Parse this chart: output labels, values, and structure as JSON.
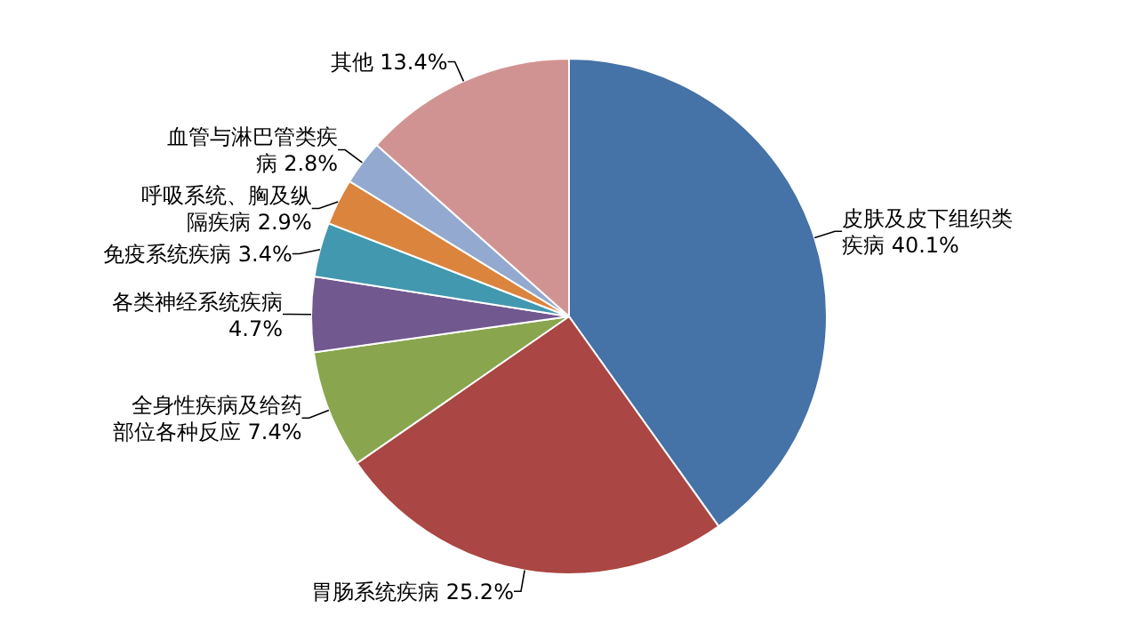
{
  "chart_data": {
    "type": "pie",
    "categories": [
      "皮肤及皮下组织类疾病",
      "胃肠系统疾病",
      "全身性疾病及给药部位各种反应",
      "各类神经系统疾病",
      "免疫系统疾病",
      "呼吸系统、胸及纵隔疾病",
      "血管与淋巴管类疾病",
      "其他"
    ],
    "values": [
      40.1,
      25.2,
      7.4,
      4.7,
      3.4,
      2.9,
      2.8,
      13.4
    ],
    "value_labels": [
      "40.1%",
      "25.2%",
      "7.4%",
      "4.7%",
      "3.4%",
      "2.9%",
      "2.8%",
      "13.4%"
    ],
    "colors": [
      "#4572a7",
      "#aa4643",
      "#89a54e",
      "#71588f",
      "#4198af",
      "#db843d",
      "#93a9cf",
      "#d19392"
    ],
    "legend": false
  }
}
